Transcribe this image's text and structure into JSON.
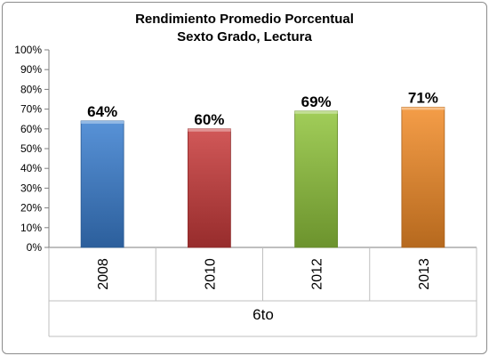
{
  "chart_data": {
    "type": "bar",
    "title": [
      "Rendimiento Promedio Porcentual",
      "Sexto Grado, Lectura"
    ],
    "xlabel": "6to",
    "ylabel": "",
    "categories": [
      "2008",
      "2010",
      "2012",
      "2013"
    ],
    "values": [
      64,
      60,
      69,
      71
    ],
    "data_labels": [
      "64%",
      "60%",
      "69%",
      "71%"
    ],
    "colors": [
      "#3a7fd0",
      "#c93a3a",
      "#90c43c",
      "#f28c28"
    ],
    "ylim": [
      0,
      100
    ],
    "yticks": [
      0,
      10,
      20,
      30,
      40,
      50,
      60,
      70,
      80,
      90,
      100
    ],
    "ytick_labels": [
      "0%",
      "10%",
      "20%",
      "30%",
      "40%",
      "50%",
      "60%",
      "70%",
      "80%",
      "90%",
      "100%"
    ],
    "grid": false,
    "legend": "none"
  }
}
